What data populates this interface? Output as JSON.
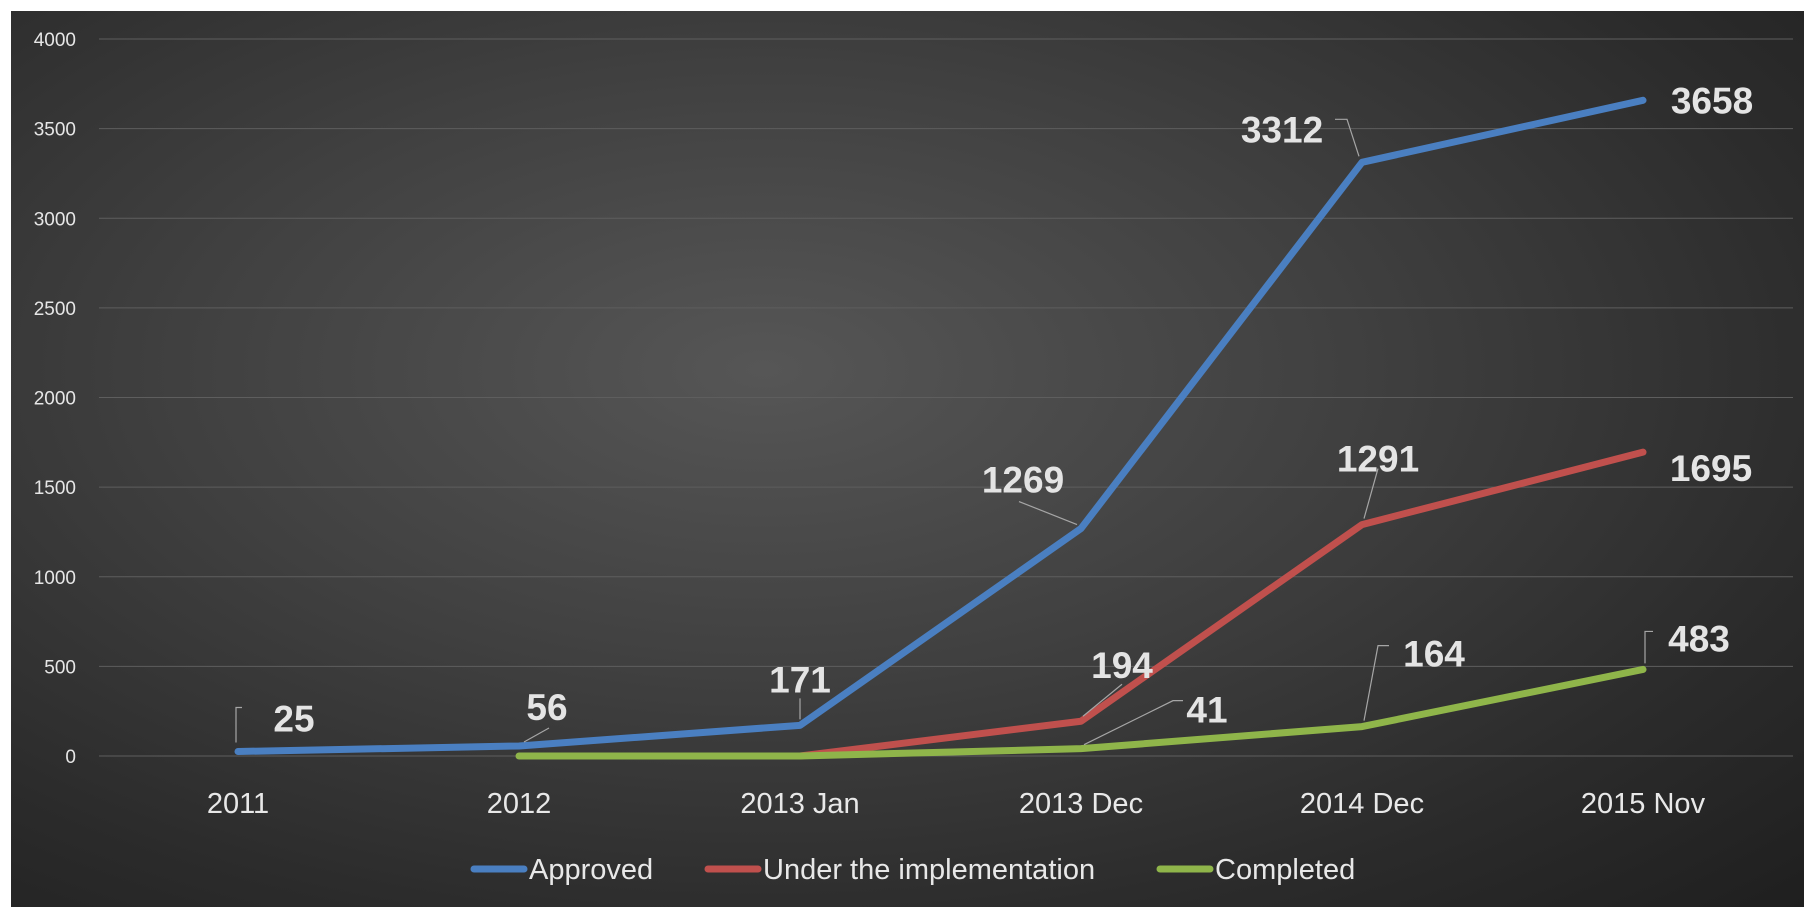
{
  "chart_data": {
    "type": "line",
    "categories": [
      "2011",
      "2012",
      "2013 Jan",
      "2013 Dec",
      "2014 Dec",
      "2015 Nov"
    ],
    "ylim": [
      0,
      4000
    ],
    "yticks": [
      0,
      500,
      1000,
      1500,
      2000,
      2500,
      3000,
      3500,
      4000
    ],
    "grid": true,
    "legend_position": "bottom",
    "series": [
      {
        "name": "Approved",
        "color": "#4a7fc1",
        "values": [
          25,
          56,
          171,
          1269,
          3312,
          3658
        ],
        "labels": [
          "25",
          "56",
          "171",
          "1269",
          "3312",
          "3658"
        ]
      },
      {
        "name": "Under the implementation",
        "color": "#c0504d",
        "values": [
          null,
          null,
          0,
          194,
          1291,
          1695
        ],
        "labels": [
          null,
          null,
          null,
          "194",
          "1291",
          "1695"
        ]
      },
      {
        "name": "Completed",
        "color": "#8fb54a",
        "values": [
          null,
          0,
          0,
          41,
          164,
          483
        ],
        "labels": [
          null,
          null,
          null,
          "41",
          "164",
          "483"
        ]
      }
    ]
  }
}
